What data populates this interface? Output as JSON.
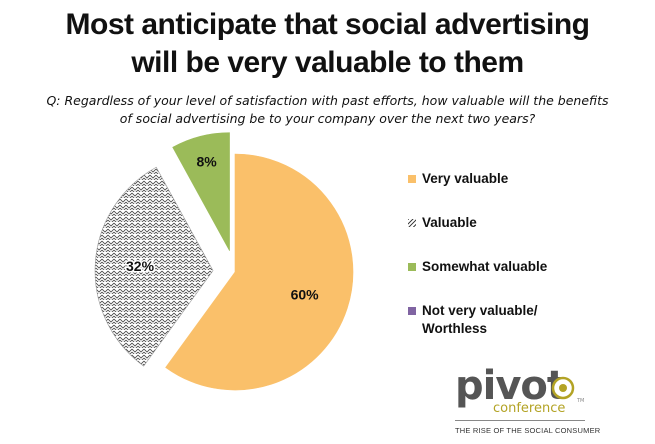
{
  "title_lines": [
    "Most anticipate that social advertising",
    "will be very valuable to them"
  ],
  "question_lines": [
    "Q: Regardless of your level of satisfaction with past efforts, how valuable will the benefits",
    "of social advertising be to your company over the next two years?"
  ],
  "chart_data": {
    "type": "pie",
    "categories": [
      "Very valuable",
      "Valuable",
      "Somewhat valuable",
      "Not very valuable/ Worthless"
    ],
    "values": [
      60,
      32,
      8,
      0
    ],
    "data_labels": [
      "60%",
      "32%",
      "8%",
      ""
    ],
    "colors": [
      "#FAC06A",
      "#FFFFFF",
      "#9BBB59",
      "#8064A2"
    ],
    "patterns": [
      "solid",
      "zigzag",
      "solid",
      "solid"
    ],
    "exploded": [
      false,
      true,
      true,
      false
    ],
    "legend_position": "right",
    "legend_lines": [
      [
        "Very valuable"
      ],
      [
        "Valuable"
      ],
      [
        "Somewhat valuable"
      ],
      [
        "Not very valuable/",
        "Worthless"
      ]
    ]
  },
  "logo": {
    "word": "pivot",
    "sub": "conference",
    "tm": "TM",
    "tagline": "THE RISE OF THE SOCIAL CONSUMER",
    "colors": {
      "word": "#555555",
      "accent": "#b3a325"
    }
  }
}
